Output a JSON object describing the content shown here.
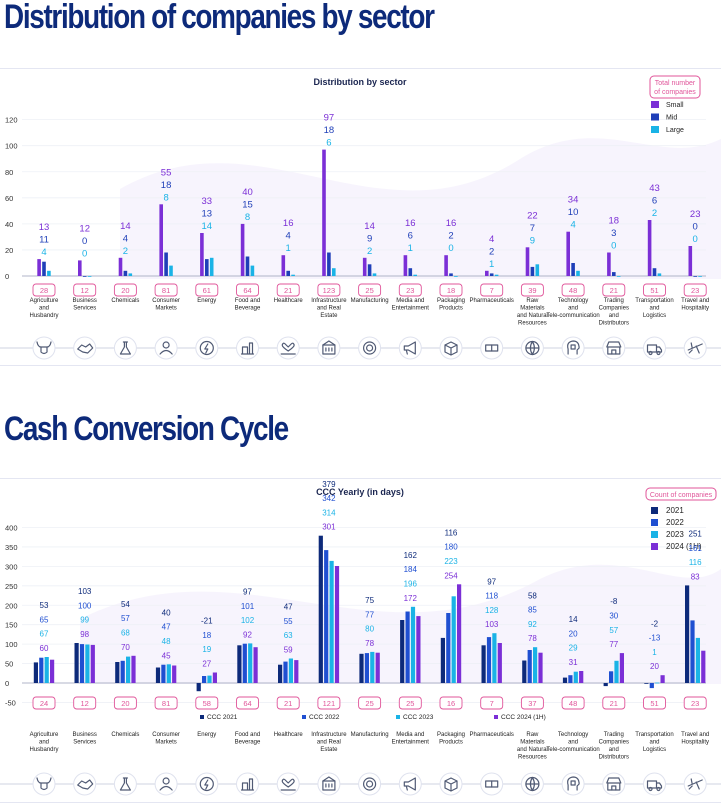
{
  "headings": {
    "sector_distribution": "Distribution of companies by sector",
    "cash_conversion": "Cash Conversion Cycle"
  },
  "icons": [
    "bull-icon",
    "handshake-icon",
    "flask-icon",
    "shopper-icon",
    "energy-icon",
    "food-icon",
    "heart-hand-icon",
    "building-icon",
    "gear-icon",
    "megaphone-icon",
    "box-icon",
    "pills-icon",
    "globe-icon",
    "head-chip-icon",
    "store-icon",
    "truck-icon",
    "plane-icon"
  ],
  "chart_data": [
    {
      "type": "bar",
      "title": "Distribution by sector",
      "legend_title": "Total number of companies",
      "legend_position": "top-right",
      "categories": [
        "Agriculture and Husbandry",
        "Business Services",
        "Chemicals",
        "Consumer Markets",
        "Energy",
        "Food and Beverage",
        "Healthcare",
        "Infrastructure and Real Estate",
        "Manufacturing",
        "Media and Entertainment",
        "Packaging Products",
        "Pharmaceuticals",
        "Raw Materials and Natural Resources",
        "Technology and Tele-communication",
        "Trading Companies and Distributors",
        "Transportation and Logistics",
        "Travel and Hospitality"
      ],
      "totals": [
        28,
        12,
        20,
        81,
        61,
        64,
        21,
        123,
        25,
        23,
        18,
        7,
        39,
        48,
        21,
        51,
        23
      ],
      "series": [
        {
          "name": "Small",
          "color": "#7b2fd6",
          "values": [
            13,
            12,
            14,
            55,
            33,
            40,
            16,
            97,
            14,
            16,
            16,
            4,
            22,
            34,
            18,
            43,
            23
          ]
        },
        {
          "name": "Mid",
          "color": "#1f3fb8",
          "values": [
            11,
            0,
            4,
            18,
            13,
            15,
            4,
            18,
            9,
            6,
            2,
            2,
            7,
            10,
            3,
            6,
            0
          ]
        },
        {
          "name": "Large",
          "color": "#1ab3e6",
          "values": [
            4,
            0,
            2,
            8,
            14,
            8,
            1,
            6,
            2,
            1,
            0,
            1,
            9,
            4,
            0,
            2,
            0
          ]
        }
      ],
      "yticks": [
        0,
        20,
        40,
        60,
        80,
        100,
        120
      ],
      "ylim": [
        0,
        120
      ]
    },
    {
      "type": "bar",
      "title": "CCC Yearly (in days)",
      "legend_title": "Count of companies",
      "legend_position": "top-right",
      "categories": [
        "Agriculture and Husbandry",
        "Business Services",
        "Chemicals",
        "Consumer Markets",
        "Energy",
        "Food and Beverage",
        "Healthcare",
        "Infrastructure and Real Estate",
        "Manufacturing",
        "Media and Entertainment",
        "Packaging Products",
        "Pharmaceuticals",
        "Raw Materials and Natural Resources",
        "Technology and Tele-communication",
        "Trading Companies and Distributors",
        "Transportation and Logistics",
        "Travel and Hospitality"
      ],
      "counts": [
        24,
        12,
        20,
        81,
        58,
        64,
        21,
        121,
        25,
        25,
        16,
        7,
        37,
        48,
        21,
        51,
        23
      ],
      "series": [
        {
          "name": "2021",
          "legend_label": "CCC 2021",
          "color": "#0d2a7a",
          "values": [
            53,
            103,
            54,
            40,
            -21,
            97,
            47,
            379,
            75,
            162,
            116,
            97,
            58,
            14,
            -8,
            -2,
            251
          ]
        },
        {
          "name": "2022",
          "legend_label": "CCC 2022",
          "color": "#1f4fd1",
          "values": [
            65,
            100,
            57,
            47,
            18,
            101,
            55,
            342,
            77,
            184,
            180,
            118,
            85,
            20,
            30,
            -13,
            161
          ]
        },
        {
          "name": "2023",
          "legend_label": "CCC 2023",
          "color": "#1ab3e6",
          "values": [
            67,
            99,
            68,
            48,
            19,
            102,
            63,
            314,
            80,
            196,
            223,
            128,
            92,
            29,
            57,
            1,
            116
          ]
        },
        {
          "name": "2024 (1H)",
          "legend_label": "CCC 2024 (1H)",
          "color": "#7b2fd6",
          "values": [
            60,
            98,
            70,
            45,
            27,
            92,
            59,
            301,
            78,
            172,
            254,
            103,
            78,
            31,
            77,
            20,
            83
          ]
        }
      ],
      "yticks": [
        -50,
        0,
        50,
        100,
        150,
        200,
        250,
        300,
        350,
        400
      ],
      "ylim": [
        -50,
        400
      ]
    }
  ]
}
